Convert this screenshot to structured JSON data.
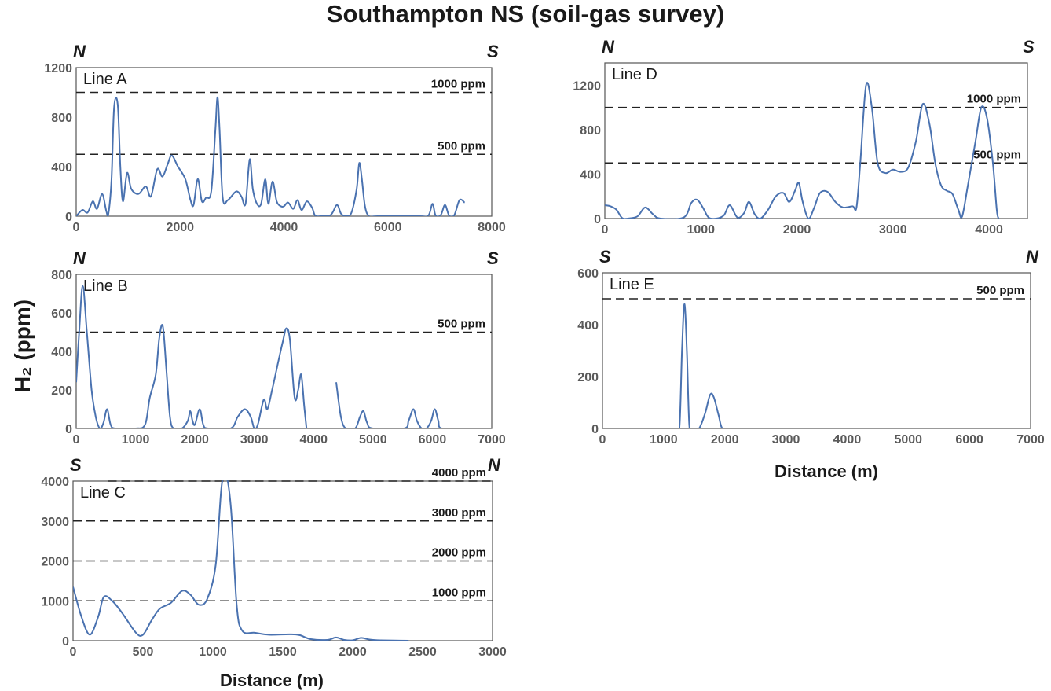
{
  "title": "Southampton NS (soil-gas survey)",
  "shared_labels": {
    "ylabel": "H₂ (ppm)",
    "xlabel": "Distance (m)"
  },
  "colors": {
    "series": "#4a72b0",
    "axis": "#555555",
    "text": "#1a1a1a",
    "ticks": "#5a5a5a"
  },
  "chart_data": [
    {
      "type": "line",
      "title": "Line A",
      "left_direction": "N",
      "right_direction": "S",
      "xlim": [
        0,
        8000
      ],
      "ylim": [
        0,
        1200
      ],
      "xticks": [
        0,
        2000,
        4000,
        6000,
        8000
      ],
      "yticks": [
        0,
        400,
        800,
        1200
      ],
      "reference_lines": [
        {
          "value": 1000,
          "label": "1000 ppm"
        },
        {
          "value": 500,
          "label": "500 ppm"
        }
      ],
      "segments": [
        [
          [
            0,
            0
          ],
          [
            120,
            50
          ],
          [
            220,
            30
          ],
          [
            320,
            120
          ],
          [
            400,
            60
          ],
          [
            500,
            180
          ],
          [
            580,
            40
          ],
          [
            620,
            20
          ],
          [
            680,
            300
          ],
          [
            730,
            880
          ],
          [
            800,
            900
          ],
          [
            850,
            400
          ],
          [
            900,
            120
          ],
          [
            980,
            350
          ],
          [
            1060,
            220
          ],
          [
            1200,
            180
          ],
          [
            1340,
            240
          ],
          [
            1440,
            160
          ],
          [
            1560,
            380
          ],
          [
            1660,
            320
          ],
          [
            1760,
            420
          ],
          [
            1840,
            490
          ],
          [
            1960,
            400
          ],
          [
            2100,
            300
          ],
          [
            2200,
            130
          ],
          [
            2260,
            90
          ],
          [
            2340,
            300
          ],
          [
            2420,
            120
          ],
          [
            2500,
            150
          ],
          [
            2600,
            200
          ],
          [
            2680,
            700
          ],
          [
            2720,
            960
          ],
          [
            2760,
            700
          ],
          [
            2820,
            150
          ],
          [
            2920,
            130
          ],
          [
            3080,
            200
          ],
          [
            3180,
            160
          ],
          [
            3260,
            100
          ],
          [
            3340,
            460
          ],
          [
            3400,
            220
          ],
          [
            3480,
            100
          ],
          [
            3560,
            100
          ],
          [
            3640,
            300
          ],
          [
            3700,
            100
          ],
          [
            3780,
            280
          ],
          [
            3860,
            120
          ],
          [
            3940,
            80
          ],
          [
            4000,
            80
          ],
          [
            4080,
            110
          ],
          [
            4180,
            60
          ],
          [
            4260,
            130
          ],
          [
            4340,
            50
          ],
          [
            4440,
            120
          ],
          [
            4540,
            70
          ],
          [
            4600,
            5
          ],
          [
            4700,
            0
          ],
          [
            4900,
            10
          ],
          [
            5020,
            90
          ],
          [
            5100,
            20
          ],
          [
            5200,
            0
          ],
          [
            5300,
            30
          ],
          [
            5400,
            220
          ],
          [
            5450,
            430
          ],
          [
            5500,
            300
          ],
          [
            5560,
            80
          ],
          [
            5640,
            0
          ],
          [
            5800,
            0
          ],
          [
            6600,
            0
          ],
          [
            6780,
            5
          ],
          [
            6860,
            100
          ],
          [
            6920,
            5
          ],
          [
            7020,
            10
          ],
          [
            7100,
            90
          ],
          [
            7180,
            5
          ],
          [
            7280,
            10
          ],
          [
            7380,
            130
          ],
          [
            7480,
            110
          ]
        ]
      ]
    },
    {
      "type": "line",
      "title": "Line B",
      "left_direction": "N",
      "right_direction": "S",
      "xlim": [
        0,
        7000
      ],
      "ylim": [
        0,
        800
      ],
      "xticks": [
        0,
        1000,
        2000,
        3000,
        4000,
        5000,
        6000,
        7000
      ],
      "yticks": [
        0,
        200,
        400,
        600,
        800
      ],
      "reference_lines": [
        {
          "value": 500,
          "label": "500 ppm"
        }
      ],
      "segments": [
        [
          [
            0,
            240
          ],
          [
            50,
            500
          ],
          [
            110,
            740
          ],
          [
            180,
            500
          ],
          [
            260,
            200
          ],
          [
            330,
            60
          ],
          [
            400,
            0
          ],
          [
            460,
            30
          ],
          [
            520,
            100
          ],
          [
            580,
            20
          ],
          [
            660,
            0
          ],
          [
            1000,
            0
          ],
          [
            1160,
            20
          ],
          [
            1240,
            160
          ],
          [
            1340,
            280
          ],
          [
            1400,
            470
          ],
          [
            1460,
            530
          ],
          [
            1520,
            300
          ],
          [
            1580,
            60
          ],
          [
            1640,
            0
          ],
          [
            1780,
            0
          ],
          [
            1880,
            40
          ],
          [
            1920,
            90
          ],
          [
            1960,
            40
          ],
          [
            2000,
            20
          ],
          [
            2080,
            100
          ],
          [
            2140,
            20
          ],
          [
            2220,
            0
          ],
          [
            2600,
            0
          ],
          [
            2720,
            60
          ],
          [
            2840,
            100
          ],
          [
            2940,
            60
          ],
          [
            3000,
            0
          ],
          [
            3060,
            20
          ],
          [
            3160,
            150
          ],
          [
            3220,
            100
          ],
          [
            3300,
            200
          ],
          [
            3400,
            340
          ],
          [
            3480,
            450
          ],
          [
            3540,
            520
          ],
          [
            3600,
            460
          ],
          [
            3680,
            160
          ],
          [
            3740,
            200
          ],
          [
            3790,
            280
          ],
          [
            3840,
            120
          ],
          [
            3880,
            0
          ]
        ],
        [
          [
            4380,
            240
          ],
          [
            4460,
            60
          ],
          [
            4540,
            0
          ],
          [
            4700,
            0
          ],
          [
            4780,
            60
          ],
          [
            4840,
            90
          ],
          [
            4900,
            30
          ],
          [
            5000,
            0
          ],
          [
            5520,
            0
          ],
          [
            5600,
            40
          ],
          [
            5680,
            100
          ],
          [
            5740,
            40
          ],
          [
            5820,
            0
          ],
          [
            5900,
            0
          ],
          [
            5980,
            40
          ],
          [
            6040,
            100
          ],
          [
            6100,
            40
          ],
          [
            6160,
            0
          ],
          [
            6580,
            0
          ]
        ]
      ]
    },
    {
      "type": "line",
      "title": "Line C",
      "left_direction": "S",
      "right_direction": "N",
      "xlim": [
        0,
        3000
      ],
      "ylim": [
        0,
        4000
      ],
      "xticks": [
        0,
        500,
        1000,
        1500,
        2000,
        2500,
        3000
      ],
      "yticks": [
        0,
        1000,
        2000,
        3000,
        4000
      ],
      "reference_lines": [
        {
          "value": 4000,
          "label": "4000 ppm"
        },
        {
          "value": 3000,
          "label": "3000 ppm"
        },
        {
          "value": 2000,
          "label": "2000 ppm"
        },
        {
          "value": 1000,
          "label": "1000 ppm"
        }
      ],
      "segments": [
        [
          [
            0,
            1350
          ],
          [
            60,
            600
          ],
          [
            120,
            150
          ],
          [
            180,
            600
          ],
          [
            220,
            1100
          ],
          [
            280,
            1000
          ],
          [
            350,
            700
          ],
          [
            450,
            200
          ],
          [
            500,
            150
          ],
          [
            560,
            500
          ],
          [
            620,
            800
          ],
          [
            700,
            950
          ],
          [
            780,
            1250
          ],
          [
            840,
            1150
          ],
          [
            900,
            900
          ],
          [
            960,
            1050
          ],
          [
            1020,
            1900
          ],
          [
            1060,
            3800
          ],
          [
            1090,
            4200
          ],
          [
            1130,
            3300
          ],
          [
            1170,
            900
          ],
          [
            1210,
            250
          ],
          [
            1300,
            200
          ],
          [
            1400,
            150
          ],
          [
            1550,
            160
          ],
          [
            1620,
            140
          ],
          [
            1700,
            40
          ],
          [
            1820,
            20
          ],
          [
            1880,
            80
          ],
          [
            1940,
            20
          ],
          [
            2000,
            10
          ],
          [
            2060,
            70
          ],
          [
            2120,
            30
          ],
          [
            2200,
            10
          ],
          [
            2400,
            0
          ]
        ]
      ]
    },
    {
      "type": "line",
      "title": "Line D",
      "left_direction": "N",
      "right_direction": "S",
      "xlim": [
        0,
        4400
      ],
      "ylim": [
        0,
        1400
      ],
      "xticks": [
        0,
        1000,
        2000,
        3000,
        4000
      ],
      "yticks": [
        0,
        400,
        800,
        1200
      ],
      "reference_lines": [
        {
          "value": 1000,
          "label": "1000 ppm"
        },
        {
          "value": 500,
          "label": "500 ppm"
        }
      ],
      "segments": [
        [
          [
            0,
            120
          ],
          [
            60,
            110
          ],
          [
            120,
            80
          ],
          [
            180,
            5
          ],
          [
            240,
            0
          ],
          [
            340,
            20
          ],
          [
            420,
            100
          ],
          [
            500,
            40
          ],
          [
            580,
            0
          ],
          [
            820,
            10
          ],
          [
            900,
            140
          ],
          [
            960,
            170
          ],
          [
            1020,
            100
          ],
          [
            1080,
            10
          ],
          [
            1160,
            0
          ],
          [
            1240,
            30
          ],
          [
            1300,
            120
          ],
          [
            1380,
            10
          ],
          [
            1450,
            50
          ],
          [
            1500,
            150
          ],
          [
            1560,
            40
          ],
          [
            1620,
            0
          ],
          [
            1700,
            80
          ],
          [
            1780,
            200
          ],
          [
            1860,
            230
          ],
          [
            1920,
            150
          ],
          [
            1980,
            250
          ],
          [
            2020,
            320
          ],
          [
            2060,
            150
          ],
          [
            2120,
            0
          ],
          [
            2180,
            100
          ],
          [
            2240,
            230
          ],
          [
            2320,
            240
          ],
          [
            2400,
            150
          ],
          [
            2480,
            100
          ],
          [
            2580,
            110
          ],
          [
            2620,
            100
          ],
          [
            2660,
            500
          ],
          [
            2720,
            1200
          ],
          [
            2780,
            1000
          ],
          [
            2840,
            500
          ],
          [
            2920,
            410
          ],
          [
            3000,
            440
          ],
          [
            3080,
            420
          ],
          [
            3160,
            460
          ],
          [
            3240,
            700
          ],
          [
            3310,
            1030
          ],
          [
            3380,
            850
          ],
          [
            3440,
            500
          ],
          [
            3500,
            300
          ],
          [
            3560,
            250
          ],
          [
            3620,
            220
          ],
          [
            3680,
            80
          ],
          [
            3720,
            20
          ],
          [
            3780,
            300
          ],
          [
            3860,
            700
          ],
          [
            3920,
            1000
          ],
          [
            3980,
            900
          ],
          [
            4040,
            500
          ],
          [
            4080,
            80
          ],
          [
            4100,
            0
          ]
        ]
      ]
    },
    {
      "type": "line",
      "title": "Line E",
      "left_direction": "S",
      "right_direction": "N",
      "xlim": [
        0,
        7000
      ],
      "ylim": [
        0,
        600
      ],
      "xticks": [
        0,
        1000,
        2000,
        3000,
        4000,
        5000,
        6000,
        7000
      ],
      "yticks": [
        0,
        200,
        400,
        600
      ],
      "reference_lines": [
        {
          "value": 500,
          "label": "500 ppm"
        }
      ],
      "segments": [
        [
          [
            0,
            0
          ],
          [
            1200,
            0
          ],
          [
            1260,
            10
          ],
          [
            1300,
            300
          ],
          [
            1340,
            480
          ],
          [
            1380,
            300
          ],
          [
            1420,
            10
          ],
          [
            1480,
            0
          ],
          [
            1580,
            0
          ],
          [
            1680,
            60
          ],
          [
            1760,
            130
          ],
          [
            1820,
            120
          ],
          [
            1900,
            50
          ],
          [
            1960,
            0
          ],
          [
            2100,
            0
          ],
          [
            5600,
            0
          ]
        ]
      ]
    }
  ]
}
